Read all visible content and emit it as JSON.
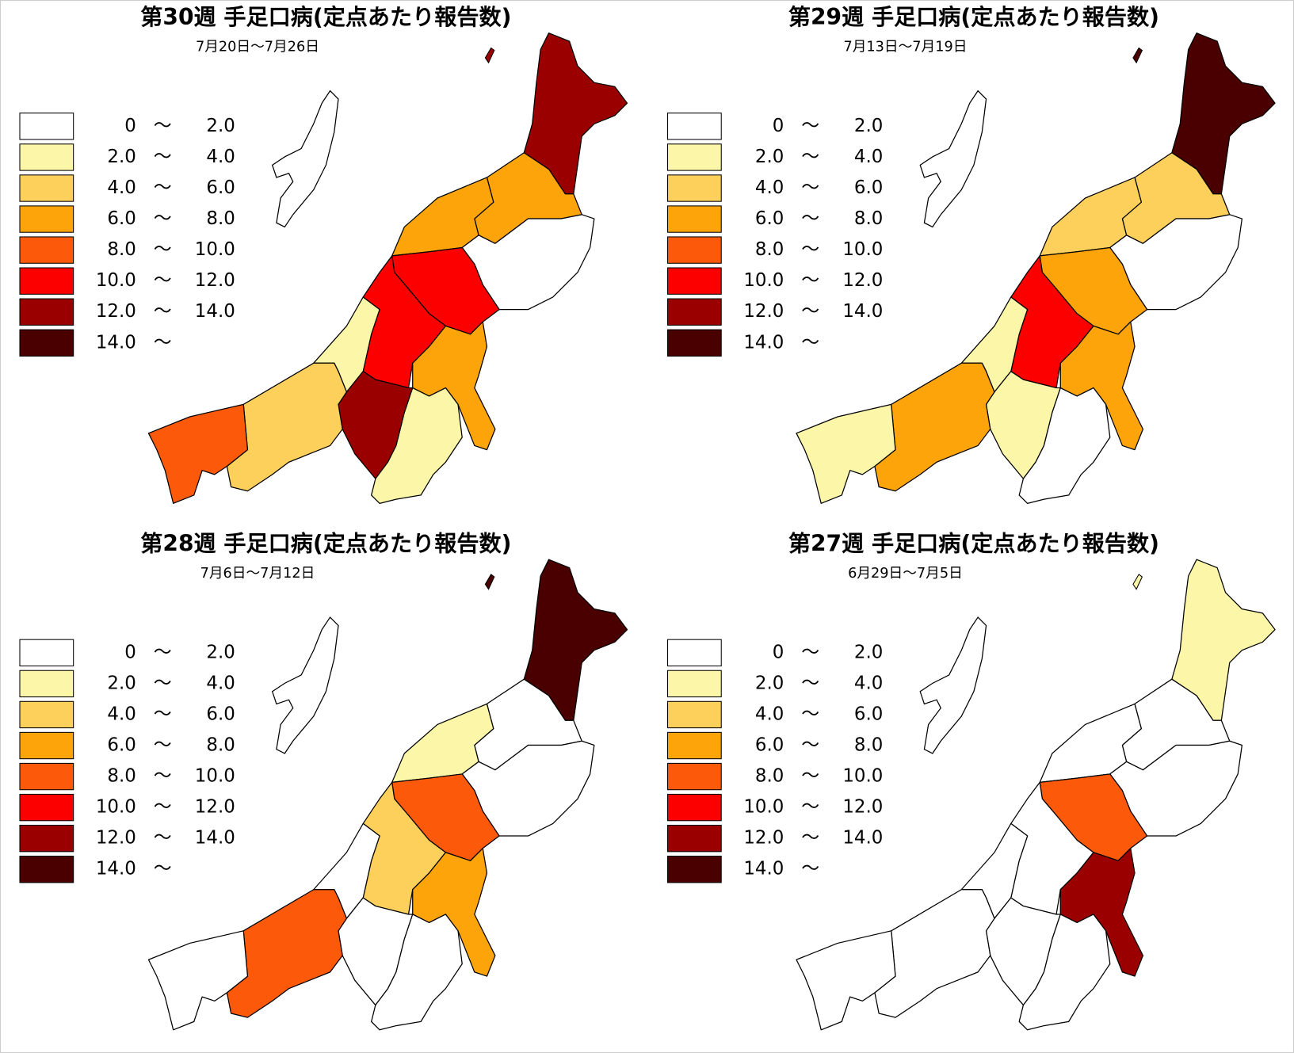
{
  "legend": {
    "separator": "〜",
    "bins": [
      {
        "from": "0",
        "to": "2.0",
        "color": "#ffffff"
      },
      {
        "from": "2.0",
        "to": "4.0",
        "color": "#fbf6a8"
      },
      {
        "from": "4.0",
        "to": "6.0",
        "color": "#fcd05a"
      },
      {
        "from": "6.0",
        "to": "8.0",
        "color": "#fca40a"
      },
      {
        "from": "8.0",
        "to": "10.0",
        "color": "#fc5a0a"
      },
      {
        "from": "10.0",
        "to": "12.0",
        "color": "#fc0000"
      },
      {
        "from": "12.0",
        "to": "14.0",
        "color": "#9a0000"
      },
      {
        "from": "14.0",
        "color": "#4a0000"
      }
    ]
  },
  "maps": [
    {
      "title": "第30週 手足口病(定点あたり報告数)",
      "period": "7月20日～7月26日",
      "regions": [
        6,
        3,
        3,
        0,
        5,
        5,
        1,
        3,
        6,
        1,
        2,
        4
      ]
    },
    {
      "title": "第29週 手足口病(定点あたり報告数)",
      "period": "7月13日～7月19日",
      "regions": [
        7,
        2,
        2,
        0,
        3,
        5,
        1,
        3,
        1,
        0,
        3,
        1
      ]
    },
    {
      "title": "第28週 手足口病(定点あたり報告数)",
      "period": "7月6日～7月12日",
      "regions": [
        7,
        0,
        1,
        0,
        4,
        2,
        0,
        3,
        0,
        0,
        4,
        0
      ]
    },
    {
      "title": "第27週 手足口病(定点あたり報告数)",
      "period": "6月29日～7月5日",
      "regions": [
        1,
        0,
        0,
        0,
        4,
        0,
        0,
        6,
        0,
        0,
        0,
        0
      ]
    }
  ]
}
